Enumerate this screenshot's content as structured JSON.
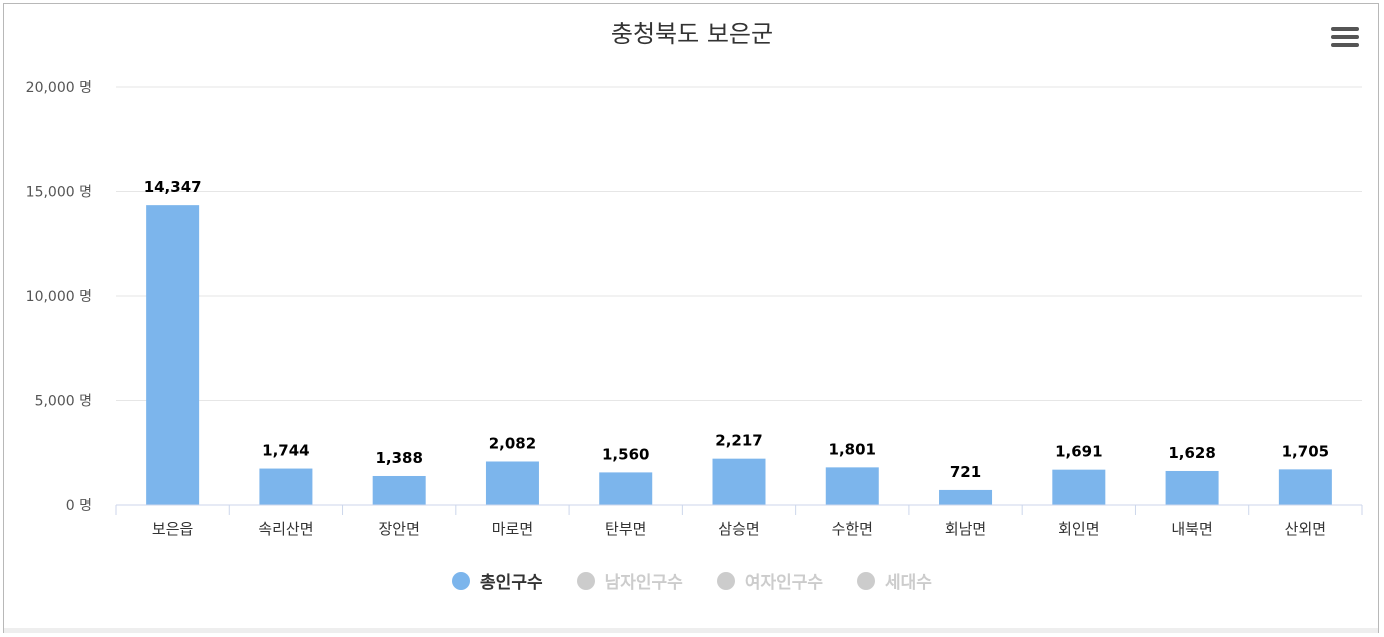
{
  "title": "충청북도 보은군",
  "menu_icon": "hamburger-menu-icon",
  "colors": {
    "bar": "#7cb5ec",
    "grid": "#e6e6e6",
    "axis": "#ccd6eb",
    "legend_active": "#333333",
    "legend_inactive": "#cccccc"
  },
  "legend": [
    {
      "name": "총인구수",
      "active": true
    },
    {
      "name": "남자인구수",
      "active": false
    },
    {
      "name": "여자인구수",
      "active": false
    },
    {
      "name": "세대수",
      "active": false
    }
  ],
  "chart_data": {
    "type": "bar",
    "title": "충청북도 보은군",
    "categories": [
      "보은읍",
      "속리산면",
      "장안면",
      "마로면",
      "탄부면",
      "삼승면",
      "수한면",
      "회남면",
      "회인면",
      "내북면",
      "산외면"
    ],
    "series": [
      {
        "name": "총인구수",
        "values": [
          14347,
          1744,
          1388,
          2082,
          1560,
          2217,
          1801,
          721,
          1691,
          1628,
          1705
        ]
      }
    ],
    "data_labels": [
      "14,347",
      "1,744",
      "1,388",
      "2,082",
      "1,560",
      "2,217",
      "1,801",
      "721",
      "1,691",
      "1,628",
      "1,705"
    ],
    "y_ticks": [
      0,
      5000,
      10000,
      15000,
      20000
    ],
    "y_tick_labels": [
      "0 명",
      "5,000 명",
      "10,000 명",
      "15,000 명",
      "20,000 명"
    ],
    "ylim": [
      0,
      20000
    ],
    "grid": true,
    "legend_position": "bottom"
  }
}
